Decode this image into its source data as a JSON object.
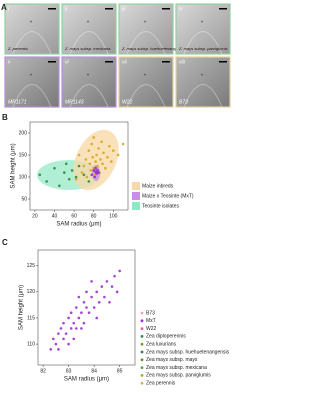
{
  "panel_labels": [
    "A",
    "B",
    "C"
  ],
  "tiles": [
    {
      "numeral": "i",
      "name": "Z. perennis"
    },
    {
      "numeral": "ii",
      "name": "Z. mays subsp. mexicana"
    },
    {
      "numeral": "iii",
      "name": "Z. mays subsp. huehuetenangensis"
    },
    {
      "numeral": "iv",
      "name": "Z. mays subsp. parviglumis"
    },
    {
      "numeral": "v",
      "name": "MR1171"
    },
    {
      "numeral": "vi",
      "name": "MR1143"
    },
    {
      "numeral": "vii",
      "name": "W22"
    },
    {
      "numeral": "viii",
      "name": "B73"
    }
  ],
  "tile_marker": "*",
  "chart_data": [
    {
      "type": "scatter",
      "x_label": "SAM radius (μm)",
      "y_label": "SAM height (μm)",
      "xlim": [
        15,
        115
      ],
      "ylim": [
        25,
        225
      ],
      "xticks": [
        20,
        40,
        60,
        80,
        100
      ],
      "yticks": [
        50,
        100,
        150,
        200
      ],
      "legend": "right",
      "series": [
        {
          "name": "Maize inbreds",
          "color": "#d9a520",
          "fill": "#f7d9a8",
          "x": [
            62,
            65,
            68,
            70,
            72,
            73,
            75,
            76,
            77,
            78,
            79,
            80,
            80,
            81,
            82,
            83,
            84,
            85,
            86,
            87,
            88,
            89,
            90,
            92,
            94,
            96,
            98,
            100,
            105,
            110
          ],
          "y": [
            95,
            150,
            110,
            125,
            140,
            100,
            160,
            130,
            115,
            175,
            145,
            120,
            190,
            105,
            135,
            150,
            125,
            165,
            110,
            140,
            180,
            130,
            155,
            120,
            145,
            170,
            135,
            160,
            150,
            175
          ]
        },
        {
          "name": "Maize x Teosinte (MxT)",
          "color": "#8e2cc8",
          "fill": "#c98fe6",
          "x": [
            78,
            80,
            81,
            82,
            82,
            83,
            84,
            85
          ],
          "y": [
            105,
            115,
            100,
            112,
            120,
            108,
            115,
            110
          ]
        },
        {
          "name": "Teosinte isolates",
          "color": "#2e8b3e",
          "fill": "#8fe8c4",
          "x": [
            25,
            32,
            40,
            45,
            50,
            52,
            55,
            58,
            62,
            65,
            70,
            75
          ],
          "y": [
            105,
            90,
            120,
            80,
            110,
            130,
            95,
            115,
            100,
            125,
            105,
            90
          ]
        }
      ]
    },
    {
      "type": "scatter",
      "x_label": "SAM radius (μm)",
      "y_label": "SAM height (μm)",
      "xlim": [
        81.8,
        85.6
      ],
      "ylim": [
        106,
        128
      ],
      "xticks": [
        82,
        83,
        84,
        85
      ],
      "yticks": [
        110,
        115,
        120,
        125
      ],
      "legend": "right",
      "series": [
        {
          "name": "B73",
          "color": "#f2a0c8",
          "x": [],
          "y": []
        },
        {
          "name": "MxT",
          "color": "#9b30d0",
          "x": [
            82.3,
            82.4,
            82.5,
            82.6,
            82.6,
            82.7,
            82.8,
            82.8,
            82.9,
            83.0,
            83.0,
            83.1,
            83.1,
            83.2,
            83.2,
            83.3,
            83.3,
            83.4,
            83.4,
            83.5,
            83.5,
            83.6,
            83.6,
            83.7,
            83.7,
            83.8,
            83.9,
            83.9,
            84.0,
            84.1,
            84.1,
            84.2,
            84.3,
            84.4,
            84.5,
            84.6,
            84.7,
            84.8,
            84.9,
            85.0
          ],
          "y": [
            109,
            111,
            110,
            112,
            109,
            113,
            111,
            114,
            112,
            115,
            110,
            113,
            116,
            114,
            111,
            117,
            113,
            115,
            119,
            116,
            113,
            118,
            114,
            117,
            120,
            116,
            119,
            122,
            117,
            120,
            115,
            118,
            121,
            119,
            122,
            118,
            121,
            123,
            120,
            124
          ]
        },
        {
          "name": "W22",
          "color": "#e060b0",
          "x": [],
          "y": []
        },
        {
          "name": "Zea diploperennis",
          "color": "#2d8a4e",
          "x": [],
          "y": []
        },
        {
          "name": "Zea luxurians",
          "color": "#7a9a30",
          "x": [],
          "y": []
        },
        {
          "name": "Zea mays subsp. huehuetenangensis",
          "color": "#3a7a5a",
          "x": [],
          "y": []
        },
        {
          "name": "Zea mays subsp. mays",
          "color": "#6a8a4a",
          "x": [],
          "y": []
        },
        {
          "name": "Zea mays subsp. mexicana",
          "color": "#5aa05a",
          "x": [],
          "y": []
        },
        {
          "name": "Zea mays subsp. parviglumis",
          "color": "#9ab040",
          "x": [],
          "y": []
        },
        {
          "name": "Zea perennis",
          "color": "#c0c060",
          "x": [],
          "y": []
        }
      ]
    }
  ]
}
